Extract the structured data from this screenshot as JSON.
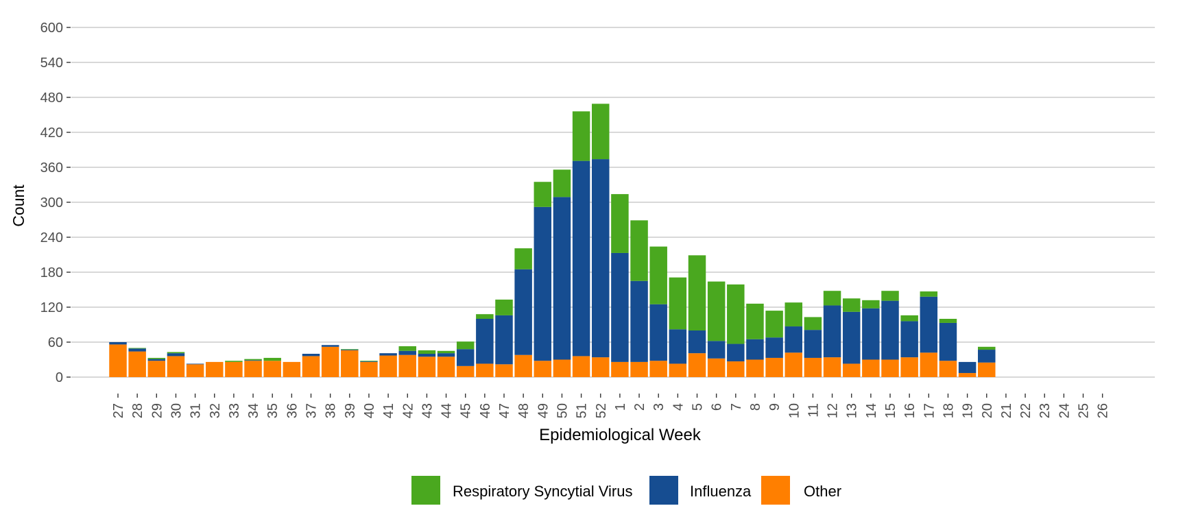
{
  "chart_data": {
    "type": "bar",
    "stacked": true,
    "xlabel": "Epidemiological Week",
    "ylabel": "Count",
    "ylim": [
      0,
      600
    ],
    "yticks": [
      0,
      60,
      120,
      180,
      240,
      300,
      360,
      420,
      480,
      540,
      600
    ],
    "grid": "horizontal",
    "legend_position": "bottom",
    "categories": [
      "27",
      "28",
      "29",
      "30",
      "31",
      "32",
      "33",
      "34",
      "35",
      "36",
      "37",
      "38",
      "39",
      "40",
      "41",
      "42",
      "43",
      "44",
      "45",
      "46",
      "47",
      "48",
      "49",
      "50",
      "51",
      "52",
      "1",
      "2",
      "3",
      "4",
      "5",
      "6",
      "7",
      "8",
      "9",
      "10",
      "11",
      "12",
      "13",
      "14",
      "15",
      "16",
      "17",
      "18",
      "19",
      "20",
      "21",
      "22",
      "23",
      "24",
      "25",
      "26"
    ],
    "series": [
      {
        "name": "Other",
        "color": "#ff7f00",
        "values": [
          56,
          44,
          28,
          36,
          22,
          26,
          26,
          28,
          28,
          26,
          36,
          52,
          46,
          26,
          37,
          38,
          35,
          35,
          19,
          23,
          22,
          38,
          28,
          30,
          36,
          34,
          26,
          26,
          28,
          23,
          41,
          32,
          27,
          30,
          33,
          42,
          33,
          34,
          23,
          30,
          30,
          34,
          42,
          28,
          7,
          25,
          0,
          0,
          0,
          0,
          0,
          0
        ]
      },
      {
        "name": "Influenza",
        "color": "#164d91",
        "values": [
          4,
          5,
          3,
          5,
          1,
          0,
          0,
          1,
          0,
          0,
          4,
          3,
          1,
          1,
          4,
          7,
          5,
          6,
          29,
          77,
          84,
          147,
          264,
          279,
          335,
          340,
          187,
          139,
          97,
          59,
          39,
          30,
          30,
          35,
          35,
          45,
          48,
          89,
          89,
          88,
          101,
          62,
          96,
          65,
          19,
          22,
          0,
          0,
          0,
          0,
          0,
          0
        ]
      },
      {
        "name": "Respiratory Syncytial Virus",
        "color": "#4aa81f",
        "values": [
          0,
          1,
          2,
          2,
          0,
          0,
          2,
          2,
          5,
          0,
          0,
          0,
          1,
          1,
          0,
          8,
          6,
          4,
          13,
          8,
          27,
          36,
          43,
          47,
          85,
          95,
          101,
          104,
          99,
          89,
          129,
          102,
          102,
          61,
          46,
          41,
          22,
          25,
          23,
          14,
          17,
          10,
          9,
          7,
          0,
          5,
          0,
          0,
          0,
          0,
          0,
          0
        ]
      }
    ],
    "legend_order": [
      "Respiratory Syncytial Virus",
      "Influenza",
      "Other"
    ]
  }
}
